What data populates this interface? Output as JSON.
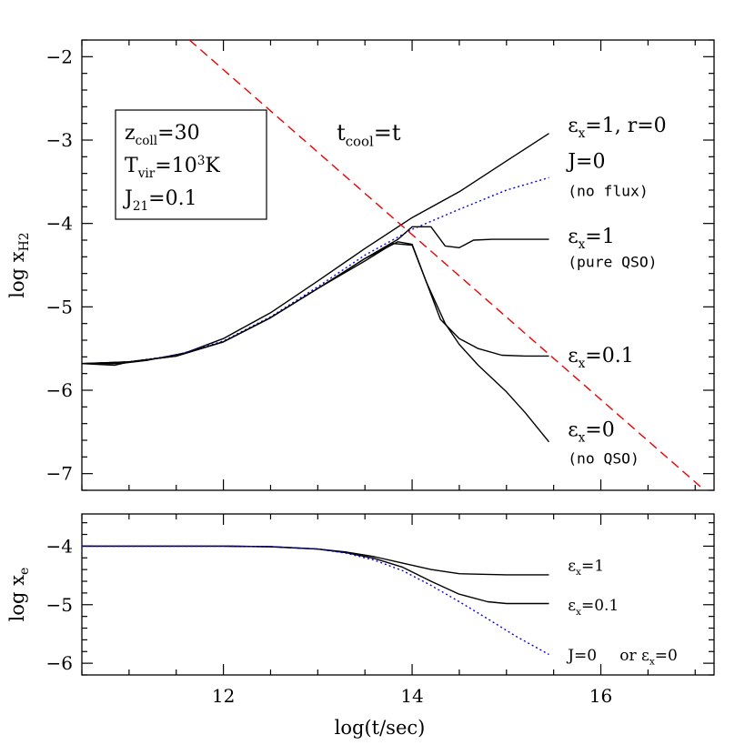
{
  "chart_data": [
    {
      "type": "line",
      "panel": "top",
      "xlim": [
        10.5,
        17.2
      ],
      "ylim": [
        -7.2,
        -1.8
      ],
      "ylabel": {
        "base": "log x",
        "sub": "H2"
      },
      "yticks": [
        {
          "v": -2,
          "label": "−2"
        },
        {
          "v": -3,
          "label": "−3"
        },
        {
          "v": -4,
          "label": "−4"
        },
        {
          "v": -5,
          "label": "−5"
        },
        {
          "v": -6,
          "label": "−6"
        },
        {
          "v": -7,
          "label": "−7"
        }
      ],
      "grid": false,
      "legend_box": {
        "line1": {
          "base": "z",
          "sub": "coll",
          "tail": "=30"
        },
        "line2": {
          "base": "T",
          "sub": "vir",
          "mid": "=10",
          "sup": "3",
          "tail": "K"
        },
        "line3": {
          "base": "J",
          "sub": "21",
          "tail": "=0.1"
        }
      },
      "series": [
        {
          "key": "ex1_r0",
          "color": "#000000",
          "dash": "",
          "x": [
            10.5,
            10.9,
            11.2,
            11.6,
            12.0,
            12.5,
            13.0,
            13.5,
            14.0,
            14.5,
            15.0,
            15.45
          ],
          "y": [
            -5.68,
            -5.68,
            -5.64,
            -5.55,
            -5.38,
            -5.07,
            -4.69,
            -4.3,
            -3.93,
            -3.62,
            -3.25,
            -2.92
          ]
        },
        {
          "key": "j0",
          "color": "#0000ee",
          "dash": "2,3",
          "x": [
            10.5,
            11.0,
            11.5,
            12.0,
            12.5,
            13.0,
            13.5,
            14.0,
            14.5,
            15.0,
            15.45
          ],
          "y": [
            -5.68,
            -5.66,
            -5.58,
            -5.41,
            -5.12,
            -4.76,
            -4.38,
            -4.07,
            -3.83,
            -3.6,
            -3.45
          ]
        },
        {
          "key": "ex1_pure",
          "color": "#000000",
          "dash": "",
          "x": [
            10.5,
            11.0,
            11.5,
            12.0,
            12.5,
            13.0,
            13.5,
            13.85,
            14.0,
            14.2,
            14.35,
            14.5,
            14.65,
            14.85,
            15.1,
            15.45
          ],
          "y": [
            -5.68,
            -5.66,
            -5.59,
            -5.42,
            -5.13,
            -4.78,
            -4.42,
            -4.19,
            -4.04,
            -4.04,
            -4.27,
            -4.29,
            -4.2,
            -4.19,
            -4.19,
            -4.19
          ]
        },
        {
          "key": "ex01",
          "color": "#000000",
          "dash": "",
          "x": [
            10.5,
            10.85,
            11.0,
            11.5,
            12.0,
            12.5,
            13.0,
            13.5,
            13.85,
            14.0,
            14.15,
            14.3,
            14.5,
            14.7,
            14.95,
            15.2,
            15.45
          ],
          "y": [
            -5.68,
            -5.7,
            -5.66,
            -5.59,
            -5.42,
            -5.13,
            -4.78,
            -4.42,
            -4.22,
            -4.25,
            -4.7,
            -5.15,
            -5.38,
            -5.5,
            -5.58,
            -5.59,
            -5.59
          ]
        },
        {
          "key": "ex0",
          "color": "#000000",
          "dash": "",
          "x": [
            10.5,
            11.0,
            11.5,
            12.0,
            12.5,
            13.0,
            13.5,
            13.8,
            14.0,
            14.15,
            14.35,
            14.5,
            14.7,
            15.0,
            15.2,
            15.45
          ],
          "y": [
            -5.68,
            -5.66,
            -5.59,
            -5.42,
            -5.13,
            -4.78,
            -4.45,
            -4.24,
            -4.26,
            -4.7,
            -5.2,
            -5.45,
            -5.7,
            -6.02,
            -6.27,
            -6.62
          ]
        },
        {
          "key": "tcool",
          "color": "#ee0000",
          "dash": "10,6",
          "x": [
            11.64,
            17.1
          ],
          "y": [
            -1.8,
            -7.2
          ]
        }
      ],
      "annotations": [
        {
          "key": "tcool_label",
          "color": "#ee0000",
          "base": "t",
          "sub": "cool",
          "tail": "=t",
          "x": 13.2,
          "y": -3.0
        },
        {
          "key": "lbl_ex1_r0",
          "color": "#000000",
          "base": "ε",
          "sub": "x",
          "tail": "=1, r=0",
          "x": 15.65,
          "y": -2.9
        },
        {
          "key": "lbl_j0",
          "color": "#0000ee",
          "base": "J=0",
          "sub": "",
          "tail": "",
          "x": 15.65,
          "y": -3.33
        },
        {
          "key": "lbl_j0_note",
          "color": "#0000ee",
          "text": "(no flux)",
          "x": 15.65,
          "y": -3.67
        },
        {
          "key": "lbl_ex1",
          "color": "#000000",
          "base": "ε",
          "sub": "x",
          "tail": "=1",
          "x": 15.65,
          "y": -4.23
        },
        {
          "key": "lbl_ex1_note",
          "color": "#000000",
          "text": "(pure QSO)",
          "x": 15.65,
          "y": -4.52
        },
        {
          "key": "lbl_ex01",
          "color": "#000000",
          "base": "ε",
          "sub": "x",
          "tail": "=0.1",
          "x": 15.65,
          "y": -5.66
        },
        {
          "key": "lbl_ex0",
          "color": "#000000",
          "base": "ε",
          "sub": "x",
          "tail": "=0",
          "x": 15.65,
          "y": -6.55
        },
        {
          "key": "lbl_ex0_note",
          "color": "#000000",
          "text": "(no QSO)",
          "x": 15.65,
          "y": -6.88
        }
      ]
    },
    {
      "type": "line",
      "panel": "bottom",
      "xlim": [
        10.5,
        17.2
      ],
      "ylim": [
        -6.2,
        -3.45
      ],
      "xlabel": "log(t/sec)",
      "ylabel": {
        "base": "log x",
        "sub": "e"
      },
      "xticks": [
        {
          "v": 12,
          "label": "12"
        },
        {
          "v": 14,
          "label": "14"
        },
        {
          "v": 16,
          "label": "16"
        }
      ],
      "yticks": [
        {
          "v": -4,
          "label": "−4"
        },
        {
          "v": -5,
          "label": "−5"
        },
        {
          "v": -6,
          "label": "−6"
        }
      ],
      "grid": false,
      "series": [
        {
          "key": "xe_ex1",
          "color": "#000000",
          "dash": "",
          "x": [
            10.5,
            11.5,
            12.0,
            12.5,
            13.0,
            13.3,
            13.6,
            13.9,
            14.2,
            14.5,
            15.0,
            15.45
          ],
          "y": [
            -4.0,
            -4.0,
            -4.0,
            -4.01,
            -4.05,
            -4.1,
            -4.18,
            -4.29,
            -4.4,
            -4.47,
            -4.49,
            -4.49
          ]
        },
        {
          "key": "xe_ex01",
          "color": "#000000",
          "dash": "",
          "x": [
            10.5,
            11.5,
            12.0,
            12.5,
            13.0,
            13.3,
            13.6,
            13.9,
            14.2,
            14.5,
            14.8,
            15.0,
            15.45
          ],
          "y": [
            -4.0,
            -4.0,
            -4.0,
            -4.01,
            -4.05,
            -4.11,
            -4.21,
            -4.36,
            -4.6,
            -4.82,
            -4.95,
            -4.98,
            -4.98
          ]
        },
        {
          "key": "xe_j0",
          "color": "#0000ee",
          "dash": "2,3",
          "x": [
            10.5,
            11.5,
            12.0,
            12.5,
            13.0,
            13.3,
            13.6,
            13.9,
            14.2,
            14.5,
            14.8,
            15.1,
            15.45
          ],
          "y": [
            -4.0,
            -4.0,
            -4.0,
            -4.01,
            -4.05,
            -4.12,
            -4.24,
            -4.42,
            -4.67,
            -4.95,
            -5.24,
            -5.54,
            -5.85
          ]
        }
      ],
      "annotations": [
        {
          "key": "xe_lbl_ex1",
          "color": "#000000",
          "base": "ε",
          "sub": "x",
          "tail": "=1",
          "x": 15.65,
          "y": -4.42
        },
        {
          "key": "xe_lbl_ex01",
          "color": "#000000",
          "base": "ε",
          "sub": "x",
          "tail": "=0.1",
          "x": 15.65,
          "y": -5.1
        },
        {
          "key": "xe_lbl_j0",
          "color": "#0000ee",
          "base": "J=0",
          "sub": "",
          "tail": "",
          "x": 15.65,
          "y": -5.95
        },
        {
          "key": "xe_lbl_or",
          "color": "#000000",
          "base": "or ε",
          "sub": "x",
          "tail": "=0",
          "x": 16.2,
          "y": -5.95
        }
      ]
    }
  ]
}
